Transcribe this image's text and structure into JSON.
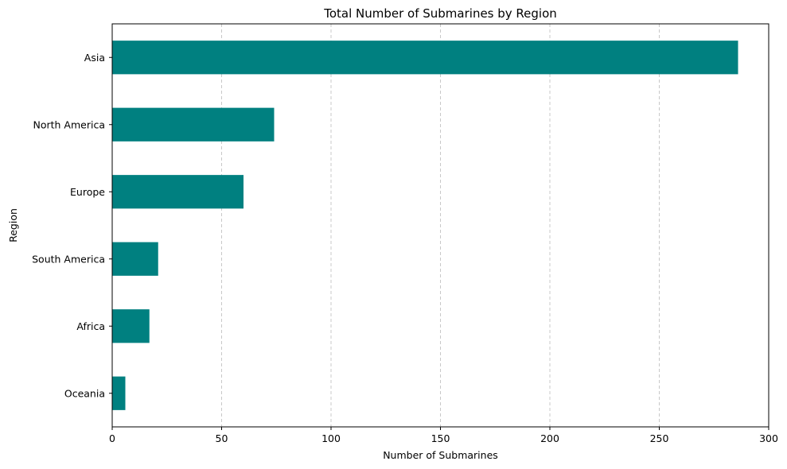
{
  "chart_data": {
    "type": "bar",
    "orientation": "horizontal",
    "title": "Total Number of Submarines by Region",
    "xlabel": "Number of Submarines",
    "ylabel": "Region",
    "categories": [
      "Asia",
      "North America",
      "Europe",
      "South America",
      "Africa",
      "Oceania"
    ],
    "values": [
      286,
      74,
      60,
      21,
      17,
      6
    ],
    "xlim": [
      0,
      300
    ],
    "xticks": [
      0,
      50,
      100,
      150,
      200,
      250,
      300
    ],
    "grid": "x-dashed",
    "legend": "none",
    "bar_color": "#008080",
    "grid_color": "#c8c8c8"
  }
}
